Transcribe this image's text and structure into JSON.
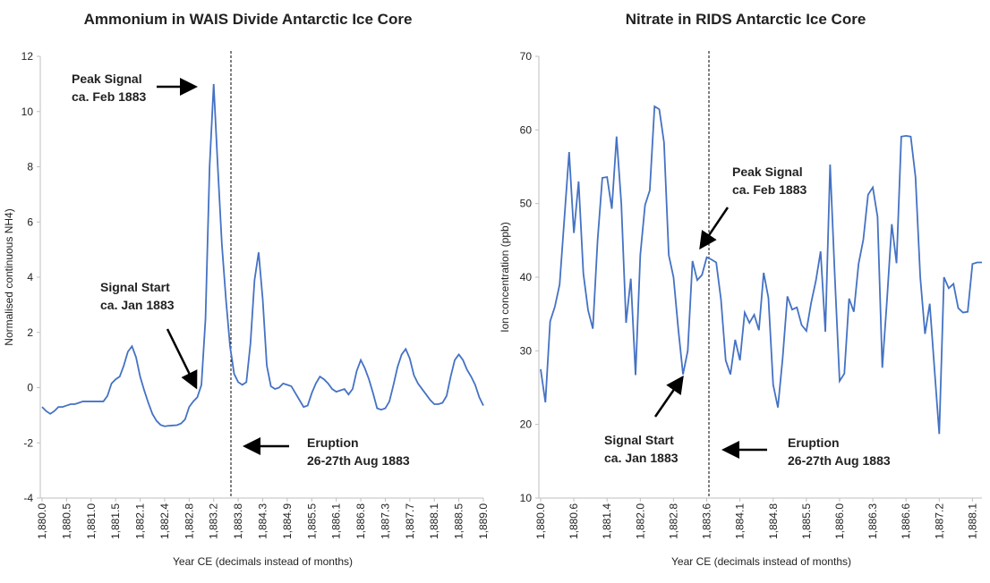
{
  "chart_data": [
    {
      "type": "line",
      "title": "Ammonium in WAIS Divide Antarctic Ice Core",
      "y_label": "Normalised continuous NH4)",
      "x_label": "Year CE (decimals instead of months)",
      "categories": [
        "1,880.0",
        null,
        null,
        null,
        null,
        null,
        "1,880.5",
        null,
        null,
        null,
        null,
        null,
        "1,881.0",
        null,
        null,
        null,
        null,
        null,
        "1,881.5",
        null,
        null,
        null,
        null,
        null,
        "1,882.1",
        null,
        null,
        null,
        null,
        null,
        "1,882.4",
        null,
        null,
        null,
        null,
        null,
        "1,882.8",
        null,
        null,
        null,
        null,
        null,
        "1,883.2",
        null,
        null,
        null,
        null,
        null,
        "1,883.8",
        null,
        null,
        null,
        null,
        null,
        "1,884.3",
        null,
        null,
        null,
        null,
        null,
        "1,884.9",
        null,
        null,
        null,
        null,
        null,
        "1,885.5",
        null,
        null,
        null,
        null,
        null,
        "1,886.1",
        null,
        null,
        null,
        null,
        null,
        "1,886.8",
        null,
        null,
        null,
        null,
        null,
        "1,887.3",
        null,
        null,
        null,
        null,
        null,
        "1,887.7",
        null,
        null,
        null,
        null,
        null,
        "1,888.1",
        null,
        null,
        null,
        null,
        null,
        "1,888.5",
        null,
        null,
        null,
        null,
        null,
        "1,889.0"
      ],
      "values": [
        -0.7,
        -0.85,
        -0.95,
        -0.85,
        -0.7,
        -0.7,
        -0.65,
        -0.6,
        -0.6,
        -0.55,
        -0.5,
        -0.5,
        -0.5,
        -0.5,
        -0.5,
        -0.5,
        -0.3,
        0.15,
        0.3,
        0.4,
        0.8,
        1.3,
        1.5,
        1.1,
        0.4,
        -0.1,
        -0.55,
        -0.95,
        -1.2,
        -1.35,
        -1.4,
        -1.38,
        -1.37,
        -1.36,
        -1.3,
        -1.15,
        -0.7,
        -0.5,
        -0.35,
        0.1,
        2.5,
        8,
        11,
        8,
        5.2,
        3.2,
        1.5,
        0.5,
        0.2,
        0.1,
        0.2,
        1.6,
        3.9,
        4.9,
        3.2,
        0.8,
        0.05,
        -0.05,
        0,
        0.15,
        0.1,
        0.05,
        -0.2,
        -0.45,
        -0.7,
        -0.65,
        -0.2,
        0.15,
        0.4,
        0.3,
        0.15,
        -0.05,
        -0.15,
        -0.1,
        -0.05,
        -0.25,
        -0.05,
        0.6,
        1.0,
        0.7,
        0.3,
        -0.2,
        -0.75,
        -0.8,
        -0.75,
        -0.5,
        0.1,
        0.75,
        1.2,
        1.4,
        1.05,
        0.45,
        0.15,
        -0.05,
        -0.25,
        -0.45,
        -0.6,
        -0.6,
        -0.55,
        -0.3,
        0.4,
        1.0,
        1.2,
        1.0,
        0.65,
        0.4,
        0.1,
        -0.35,
        -0.65
      ],
      "color": "#4472c4",
      "ylim": [
        -4,
        12
      ],
      "yticks": [
        -4,
        -2,
        0,
        2,
        4,
        6,
        8,
        10,
        12
      ],
      "annotations": [
        {
          "lines": [
            "Peak Signal",
            "ca. Feb 1883"
          ]
        },
        {
          "lines": [
            "Signal Start",
            "ca. Jan 1883"
          ]
        },
        {
          "lines": [
            "Eruption",
            "26-27th Aug 1883"
          ]
        }
      ]
    },
    {
      "type": "line",
      "title": "Nitrate in RIDS Antarctic Ice Core",
      "y_label": "Ion concentration (ppb)",
      "x_label": "Year CE (decimals instead of months)",
      "categories": [
        "1,880.0",
        null,
        null,
        null,
        null,
        null,
        null,
        "1,880.6",
        null,
        null,
        null,
        null,
        null,
        null,
        "1,881.4",
        null,
        null,
        null,
        null,
        null,
        null,
        "1,882.0",
        null,
        null,
        null,
        null,
        null,
        null,
        "1,882.8",
        null,
        null,
        null,
        null,
        null,
        null,
        "1,883.6",
        null,
        null,
        null,
        null,
        null,
        null,
        "1,884.1",
        null,
        null,
        null,
        null,
        null,
        null,
        "1,884.8",
        null,
        null,
        null,
        null,
        null,
        null,
        "1,885.5",
        null,
        null,
        null,
        null,
        null,
        null,
        "1,886.0",
        null,
        null,
        null,
        null,
        null,
        null,
        "1,886.3",
        null,
        null,
        null,
        null,
        null,
        null,
        "1,886.6",
        null,
        null,
        null,
        null,
        null,
        null,
        "1,887.2",
        null,
        null,
        null,
        null,
        null,
        null,
        "1,888.1",
        null,
        null
      ],
      "values": [
        27.5,
        23,
        34,
        36,
        39,
        48,
        57,
        46,
        53,
        40.5,
        35.5,
        33,
        45,
        53.5,
        53.6,
        49.3,
        59.1,
        50,
        33.8,
        39.8,
        26.7,
        43,
        49.8,
        51.8,
        63.2,
        62.8,
        58.3,
        43,
        40,
        33,
        26.8,
        30,
        42.2,
        39.6,
        40.3,
        42.7,
        42.4,
        42,
        37,
        28.7,
        26.8,
        31.5,
        28.7,
        35.2,
        33.8,
        34.9,
        32.8,
        40.6,
        37.2,
        25.4,
        22.3,
        29,
        37.4,
        35.6,
        35.9,
        33.5,
        32.7,
        36.5,
        39.5,
        43.5,
        32.6,
        55.3,
        40,
        25.9,
        26.9,
        37.1,
        35.3,
        41.8,
        45.1,
        51.2,
        52.2,
        48.2,
        27.7,
        37,
        47.2,
        41.9,
        59.1,
        59.2,
        59.1,
        53.6,
        40,
        32.3,
        36.4,
        27.5,
        18.7,
        40,
        38.5,
        39.1,
        35.8,
        35.2,
        35.3,
        41.8,
        42,
        42
      ],
      "color": "#4472c4",
      "ylim": [
        10,
        70
      ],
      "yticks": [
        10,
        20,
        30,
        40,
        50,
        60,
        70
      ],
      "annotations": [
        {
          "lines": [
            "Peak Signal",
            "ca. Feb 1883"
          ]
        },
        {
          "lines": [
            "Signal Start",
            "ca. Jan 1883"
          ]
        },
        {
          "lines": [
            "Eruption",
            "26-27th Aug 1883"
          ]
        }
      ]
    }
  ]
}
